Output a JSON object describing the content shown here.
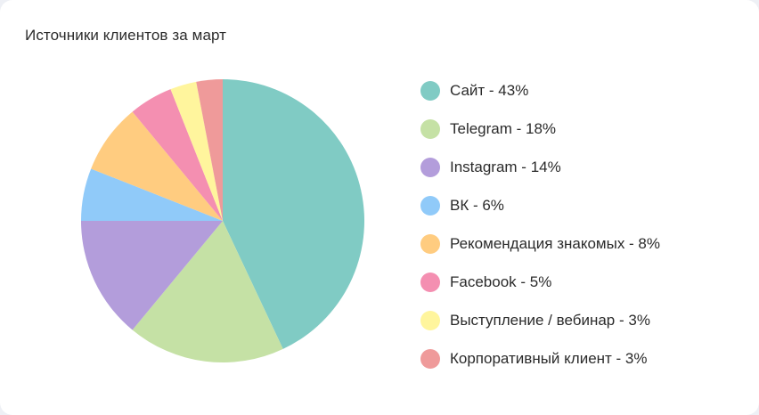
{
  "chart_data": {
    "type": "pie",
    "title": "Источники клиентов за март",
    "legend_position": "right",
    "slices": [
      {
        "label": "Сайт",
        "value": 43,
        "color": "#80cbc4",
        "legend_text": "Сайт - 43%"
      },
      {
        "label": "Telegram",
        "value": 18,
        "color": "#c5e1a5",
        "legend_text": "Telegram - 18%"
      },
      {
        "label": "Instagram",
        "value": 14,
        "color": "#b39ddb",
        "legend_text": "Instagram - 14%"
      },
      {
        "label": "ВК",
        "value": 6,
        "color": "#90caf9",
        "legend_text": "ВК - 6%"
      },
      {
        "label": "Рекомендация знакомых",
        "value": 8,
        "color": "#ffcc80",
        "legend_text": "Рекомендация знакомых - 8%"
      },
      {
        "label": "Facebook",
        "value": 5,
        "color": "#f48fb1",
        "legend_text": "Facebook - 5%"
      },
      {
        "label": "Выступление / вебинар",
        "value": 3,
        "color": "#fff59d",
        "legend_text": "Выступление / вебинар - 3%"
      },
      {
        "label": "Корпоративный клиент",
        "value": 3,
        "color": "#ef9a9a",
        "legend_text": "Корпоративный клиент - 3%"
      }
    ]
  }
}
